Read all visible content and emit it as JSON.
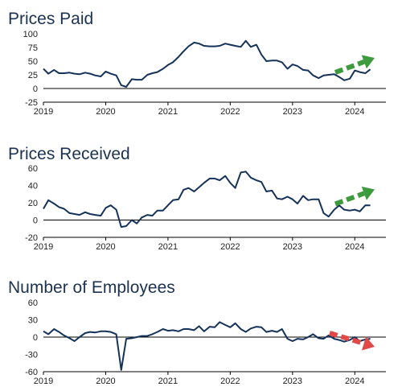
{
  "colors": {
    "line": "#15325a",
    "axis": "#000000",
    "grid": "#cfd4da",
    "arrow_up": "#3d9a3d",
    "arrow_down": "#e14848"
  },
  "chart_data": [
    {
      "type": "line",
      "title": "Prices Paid",
      "ylim": [
        -25,
        100
      ],
      "yticks": [
        "100",
        "75",
        "50",
        "25",
        "0",
        "-25"
      ],
      "ytick_values": [
        100,
        75,
        50,
        25,
        0,
        -25
      ],
      "xlim": [
        2019.0,
        2024.5
      ],
      "xticks": [
        "2019",
        "2020",
        "2021",
        "2022",
        "2023",
        "2024"
      ],
      "xtick_values": [
        2019,
        2020,
        2021,
        2022,
        2023,
        2024
      ],
      "grid": false,
      "zero_line": true,
      "annotation": {
        "kind": "arrow",
        "direction": "up",
        "color": "green"
      },
      "x": [
        2019.0,
        2019.08,
        2019.17,
        2019.25,
        2019.33,
        2019.42,
        2019.5,
        2019.58,
        2019.67,
        2019.75,
        2019.83,
        2019.92,
        2020.0,
        2020.08,
        2020.17,
        2020.25,
        2020.33,
        2020.42,
        2020.5,
        2020.58,
        2020.67,
        2020.75,
        2020.83,
        2020.92,
        2021.0,
        2021.08,
        2021.17,
        2021.25,
        2021.33,
        2021.42,
        2021.5,
        2021.58,
        2021.67,
        2021.75,
        2021.83,
        2021.92,
        2022.0,
        2022.08,
        2022.17,
        2022.25,
        2022.33,
        2022.42,
        2022.5,
        2022.58,
        2022.67,
        2022.75,
        2022.83,
        2022.92,
        2023.0,
        2023.08,
        2023.17,
        2023.25,
        2023.33,
        2023.42,
        2023.5,
        2023.58,
        2023.67,
        2023.75,
        2023.83,
        2023.92,
        2024.0,
        2024.08,
        2024.17,
        2024.25
      ],
      "values": [
        36,
        27,
        34,
        28,
        28,
        29,
        27,
        26,
        29,
        27,
        24,
        22,
        31,
        27,
        24,
        6,
        3,
        17,
        16,
        16,
        25,
        28,
        30,
        36,
        43,
        48,
        58,
        68,
        77,
        84,
        82,
        78,
        77,
        77,
        78,
        82,
        80,
        78,
        76,
        87,
        76,
        80,
        62,
        50,
        51,
        51,
        48,
        36,
        44,
        41,
        34,
        33,
        24,
        19,
        24,
        25,
        26,
        21,
        15,
        18,
        33,
        30,
        28,
        35
      ]
    },
    {
      "type": "line",
      "title": "Prices Received",
      "ylim": [
        -20,
        60
      ],
      "yticks": [
        "60",
        "40",
        "20",
        "0",
        "-20"
      ],
      "ytick_values": [
        60,
        40,
        20,
        0,
        -20
      ],
      "xlim": [
        2019.0,
        2024.5
      ],
      "xticks": [
        "2019",
        "2020",
        "2021",
        "2022",
        "2023",
        "2024"
      ],
      "xtick_values": [
        2019,
        2020,
        2021,
        2022,
        2023,
        2024
      ],
      "grid": false,
      "zero_line": true,
      "annotation": {
        "kind": "arrow",
        "direction": "up",
        "color": "green"
      },
      "x": [
        2019.0,
        2019.08,
        2019.17,
        2019.25,
        2019.33,
        2019.42,
        2019.5,
        2019.58,
        2019.67,
        2019.75,
        2019.83,
        2019.92,
        2020.0,
        2020.08,
        2020.17,
        2020.25,
        2020.33,
        2020.42,
        2020.5,
        2020.58,
        2020.67,
        2020.75,
        2020.83,
        2020.92,
        2021.0,
        2021.08,
        2021.17,
        2021.25,
        2021.33,
        2021.42,
        2021.5,
        2021.58,
        2021.67,
        2021.75,
        2021.83,
        2021.92,
        2022.0,
        2022.08,
        2022.17,
        2022.25,
        2022.33,
        2022.42,
        2022.5,
        2022.58,
        2022.67,
        2022.75,
        2022.83,
        2022.92,
        2023.0,
        2023.08,
        2023.17,
        2023.25,
        2023.33,
        2023.42,
        2023.5,
        2023.58,
        2023.67,
        2023.75,
        2023.83,
        2023.92,
        2024.0,
        2024.08,
        2024.17,
        2024.25
      ],
      "values": [
        13,
        23,
        19,
        15,
        13,
        8,
        7,
        6,
        9,
        7,
        6,
        5,
        14,
        17,
        12,
        -8,
        -7,
        0,
        -4,
        3,
        6,
        5,
        11,
        11,
        17,
        23,
        24,
        35,
        37,
        33,
        38,
        43,
        48,
        48,
        46,
        51,
        43,
        37,
        55,
        56,
        49,
        46,
        44,
        33,
        34,
        25,
        24,
        27,
        24,
        19,
        28,
        23,
        24,
        24,
        8,
        4,
        12,
        17,
        12,
        11,
        12,
        10,
        17,
        17
      ]
    },
    {
      "type": "line",
      "title": "Number of Employees",
      "ylim": [
        -60,
        60
      ],
      "yticks": [
        "60",
        "30",
        "0",
        "-30",
        "-60"
      ],
      "ytick_values": [
        60,
        30,
        0,
        -30,
        -60
      ],
      "xlim": [
        2019.0,
        2024.5
      ],
      "xticks": [
        "2019",
        "2020",
        "2021",
        "2022",
        "2023",
        "2024"
      ],
      "xtick_values": [
        2019,
        2020,
        2021,
        2022,
        2023,
        2024
      ],
      "grid": false,
      "zero_line": true,
      "annotation": {
        "kind": "arrow",
        "direction": "down",
        "color": "red"
      },
      "x": [
        2019.0,
        2019.08,
        2019.17,
        2019.25,
        2019.33,
        2019.42,
        2019.5,
        2019.58,
        2019.67,
        2019.75,
        2019.83,
        2019.92,
        2020.0,
        2020.08,
        2020.17,
        2020.25,
        2020.33,
        2020.42,
        2020.5,
        2020.58,
        2020.67,
        2020.75,
        2020.83,
        2020.92,
        2021.0,
        2021.08,
        2021.17,
        2021.25,
        2021.33,
        2021.42,
        2021.5,
        2021.58,
        2021.67,
        2021.75,
        2021.83,
        2021.92,
        2022.0,
        2022.08,
        2022.17,
        2022.25,
        2022.33,
        2022.42,
        2022.5,
        2022.58,
        2022.67,
        2022.75,
        2022.83,
        2022.92,
        2023.0,
        2023.08,
        2023.17,
        2023.25,
        2023.33,
        2023.42,
        2023.5,
        2023.58,
        2023.67,
        2023.75,
        2023.83,
        2023.92,
        2024.0,
        2024.08,
        2024.17,
        2024.25
      ],
      "values": [
        10,
        5,
        14,
        9,
        3,
        -2,
        -7,
        0,
        7,
        9,
        8,
        10,
        10,
        9,
        5,
        -57,
        -3,
        -2,
        0,
        2,
        2,
        5,
        9,
        14,
        11,
        12,
        10,
        14,
        14,
        12,
        19,
        10,
        18,
        17,
        26,
        21,
        17,
        24,
        14,
        9,
        15,
        18,
        17,
        9,
        11,
        9,
        14,
        -3,
        -7,
        -3,
        -4,
        0,
        5,
        -2,
        -3,
        3,
        -3,
        -5,
        -8,
        -5,
        0,
        -7,
        -4,
        -3
      ]
    }
  ]
}
